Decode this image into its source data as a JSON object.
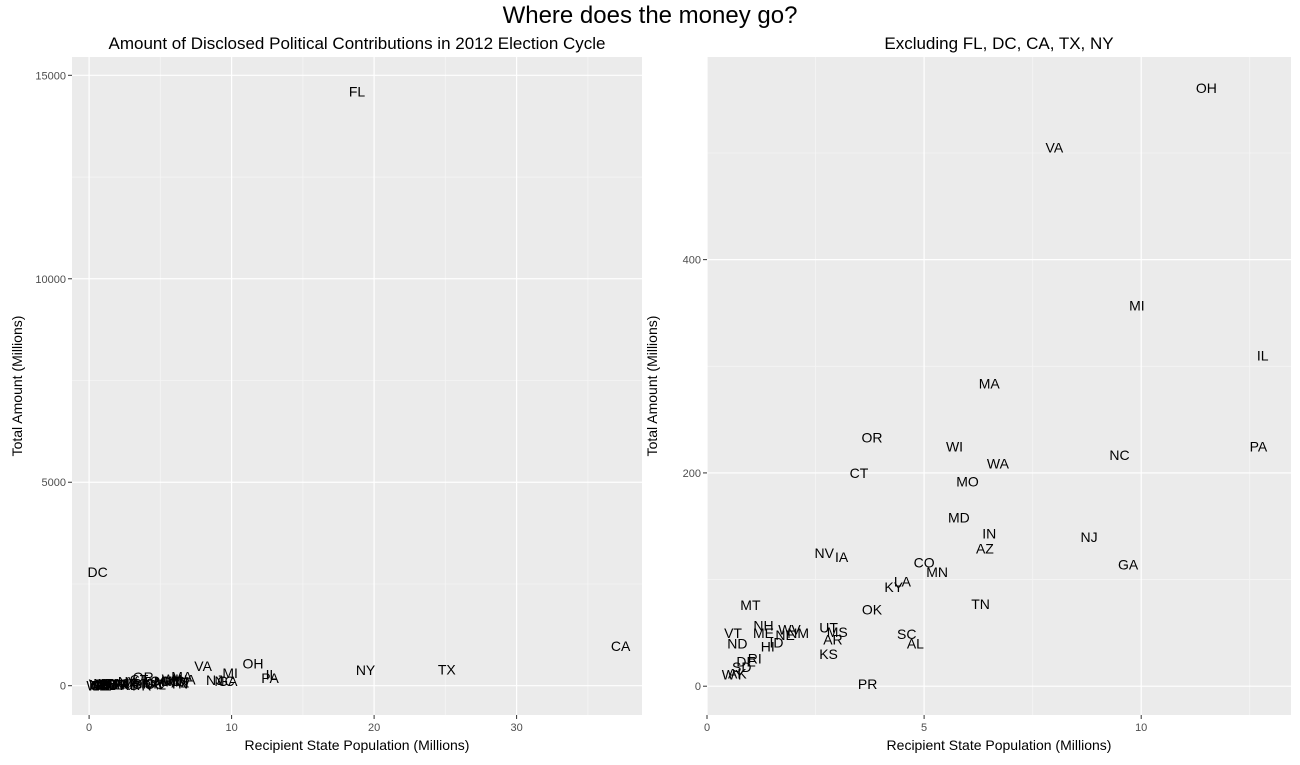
{
  "figure": {
    "suptitle": "Where does the money go?",
    "colors": {
      "panel_bg": "#ebebeb",
      "grid_major": "#ffffff",
      "grid_minor": "#f5f5f5",
      "text": "#000000",
      "tick_text": "#4d4d4d"
    }
  },
  "chart_data": [
    {
      "type": "scatter",
      "mark": "text",
      "title": "Amount of Disclosed Political Contributions in 2012 Election Cycle",
      "xlabel": "Recipient State Population (Millions)",
      "ylabel": "Total Amount (Millions)",
      "xlim": [
        -1.2,
        38.8
      ],
      "ylim": [
        -720,
        15450
      ],
      "xticks": [
        0,
        10,
        20,
        30
      ],
      "yticks": [
        0,
        5000,
        10000,
        15000
      ],
      "grid": true,
      "points": [
        {
          "label": "FL",
          "x": 18.8,
          "y": 14600
        },
        {
          "label": "DC",
          "x": 0.6,
          "y": 2800
        },
        {
          "label": "CA",
          "x": 37.3,
          "y": 980
        },
        {
          "label": "NY",
          "x": 19.4,
          "y": 380
        },
        {
          "label": "TX",
          "x": 25.1,
          "y": 400
        },
        {
          "label": "OH",
          "x": 11.5,
          "y": 550
        },
        {
          "label": "VA",
          "x": 8.0,
          "y": 480
        },
        {
          "label": "MI",
          "x": 9.9,
          "y": 310
        },
        {
          "label": "IL",
          "x": 12.8,
          "y": 280
        },
        {
          "label": "PA",
          "x": 12.7,
          "y": 190
        },
        {
          "label": "NC",
          "x": 9.5,
          "y": 110
        },
        {
          "label": "GA",
          "x": 9.7,
          "y": 110
        },
        {
          "label": "NJ",
          "x": 8.8,
          "y": 140
        },
        {
          "label": "MA",
          "x": 6.5,
          "y": 230
        },
        {
          "label": "WA",
          "x": 6.7,
          "y": 150
        },
        {
          "label": "IN",
          "x": 6.5,
          "y": 100
        },
        {
          "label": "AZ",
          "x": 6.4,
          "y": 80
        },
        {
          "label": "TN",
          "x": 6.3,
          "y": 60
        },
        {
          "label": "MO",
          "x": 6.0,
          "y": 110
        },
        {
          "label": "MD",
          "x": 5.8,
          "y": 120
        },
        {
          "label": "WI",
          "x": 5.7,
          "y": 170
        },
        {
          "label": "MN",
          "x": 5.3,
          "y": 100
        },
        {
          "label": "CO",
          "x": 5.0,
          "y": 120
        },
        {
          "label": "AL",
          "x": 4.8,
          "y": 30
        },
        {
          "label": "SC",
          "x": 4.6,
          "y": 40
        },
        {
          "label": "LA",
          "x": 4.5,
          "y": 80
        },
        {
          "label": "KY",
          "x": 4.3,
          "y": 60
        },
        {
          "label": "OR",
          "x": 3.8,
          "y": 210
        },
        {
          "label": "OK",
          "x": 3.7,
          "y": 60
        },
        {
          "label": "PR",
          "x": 3.7,
          "y": 0
        },
        {
          "label": "CT",
          "x": 3.5,
          "y": 150
        },
        {
          "label": "IA",
          "x": 3.0,
          "y": 90
        },
        {
          "label": "MS",
          "x": 3.0,
          "y": 40
        },
        {
          "label": "AR",
          "x": 2.9,
          "y": 20
        },
        {
          "label": "UT",
          "x": 2.8,
          "y": 50
        },
        {
          "label": "KS",
          "x": 2.8,
          "y": 20
        },
        {
          "label": "NV",
          "x": 2.7,
          "y": 100
        },
        {
          "label": "NM",
          "x": 2.0,
          "y": 40
        },
        {
          "label": "NE",
          "x": 1.8,
          "y": 30
        },
        {
          "label": "WV",
          "x": 1.8,
          "y": 50
        },
        {
          "label": "ID",
          "x": 1.6,
          "y": 20
        },
        {
          "label": "HI",
          "x": 1.4,
          "y": 20
        },
        {
          "label": "NH",
          "x": 1.3,
          "y": 50
        },
        {
          "label": "ME",
          "x": 1.3,
          "y": 40
        },
        {
          "label": "RI",
          "x": 1.0,
          "y": 20
        },
        {
          "label": "MT",
          "x": 1.0,
          "y": 60
        },
        {
          "label": "DE",
          "x": 0.9,
          "y": 10
        },
        {
          "label": "SD",
          "x": 0.8,
          "y": 10
        },
        {
          "label": "AK",
          "x": 0.7,
          "y": 0
        },
        {
          "label": "ND",
          "x": 0.7,
          "y": 30
        },
        {
          "label": "VT",
          "x": 0.6,
          "y": 40
        },
        {
          "label": "WY",
          "x": 0.6,
          "y": 0
        }
      ]
    },
    {
      "type": "scatter",
      "mark": "text",
      "title": "Excluding FL, DC, CA, TX, NY",
      "xlabel": "Recipient State Population (Millions)",
      "ylabel": "Total Amount (Millions)",
      "xlim": [
        0.0,
        13.45
      ],
      "ylim": [
        -27,
        590
      ],
      "xticks": [
        0,
        5,
        10
      ],
      "yticks": [
        0,
        200,
        400
      ],
      "grid": true,
      "points": [
        {
          "label": "OH",
          "x": 11.5,
          "y": 561
        },
        {
          "label": "VA",
          "x": 8.0,
          "y": 505
        },
        {
          "label": "MI",
          "x": 9.9,
          "y": 357
        },
        {
          "label": "IL",
          "x": 12.8,
          "y": 310
        },
        {
          "label": "MA",
          "x": 6.5,
          "y": 284
        },
        {
          "label": "OR",
          "x": 3.8,
          "y": 233
        },
        {
          "label": "WI",
          "x": 5.7,
          "y": 225
        },
        {
          "label": "PA",
          "x": 12.7,
          "y": 225
        },
        {
          "label": "NC",
          "x": 9.5,
          "y": 217
        },
        {
          "label": "WA",
          "x": 6.7,
          "y": 209
        },
        {
          "label": "CT",
          "x": 3.5,
          "y": 200
        },
        {
          "label": "MO",
          "x": 6.0,
          "y": 192
        },
        {
          "label": "MD",
          "x": 5.8,
          "y": 158
        },
        {
          "label": "IN",
          "x": 6.5,
          "y": 143
        },
        {
          "label": "NJ",
          "x": 8.8,
          "y": 140
        },
        {
          "label": "AZ",
          "x": 6.4,
          "y": 129
        },
        {
          "label": "NV",
          "x": 2.7,
          "y": 125
        },
        {
          "label": "IA",
          "x": 3.1,
          "y": 121
        },
        {
          "label": "CO",
          "x": 5.0,
          "y": 116
        },
        {
          "label": "GA",
          "x": 9.7,
          "y": 114
        },
        {
          "label": "MN",
          "x": 5.3,
          "y": 107
        },
        {
          "label": "LA",
          "x": 4.5,
          "y": 98
        },
        {
          "label": "KY",
          "x": 4.3,
          "y": 93
        },
        {
          "label": "TN",
          "x": 6.3,
          "y": 77
        },
        {
          "label": "MT",
          "x": 1.0,
          "y": 76
        },
        {
          "label": "OK",
          "x": 3.8,
          "y": 72
        },
        {
          "label": "NH",
          "x": 1.3,
          "y": 57
        },
        {
          "label": "UT",
          "x": 2.8,
          "y": 55
        },
        {
          "label": "WV",
          "x": 1.9,
          "y": 53
        },
        {
          "label": "NM",
          "x": 2.1,
          "y": 50
        },
        {
          "label": "ME",
          "x": 1.3,
          "y": 50
        },
        {
          "label": "MS",
          "x": 3.0,
          "y": 51
        },
        {
          "label": "NE",
          "x": 1.8,
          "y": 48
        },
        {
          "label": "VT",
          "x": 0.6,
          "y": 50
        },
        {
          "label": "SC",
          "x": 4.6,
          "y": 49
        },
        {
          "label": "AR",
          "x": 2.9,
          "y": 44
        },
        {
          "label": "ID",
          "x": 1.6,
          "y": 41
        },
        {
          "label": "ND",
          "x": 0.7,
          "y": 40
        },
        {
          "label": "AL",
          "x": 4.8,
          "y": 40
        },
        {
          "label": "HI",
          "x": 1.4,
          "y": 37
        },
        {
          "label": "KS",
          "x": 2.8,
          "y": 30
        },
        {
          "label": "RI",
          "x": 1.1,
          "y": 26
        },
        {
          "label": "DE",
          "x": 0.9,
          "y": 23
        },
        {
          "label": "SD",
          "x": 0.8,
          "y": 18
        },
        {
          "label": "AK",
          "x": 0.7,
          "y": 12
        },
        {
          "label": "WY",
          "x": 0.6,
          "y": 11
        },
        {
          "label": "PR",
          "x": 3.7,
          "y": 2
        }
      ]
    }
  ]
}
